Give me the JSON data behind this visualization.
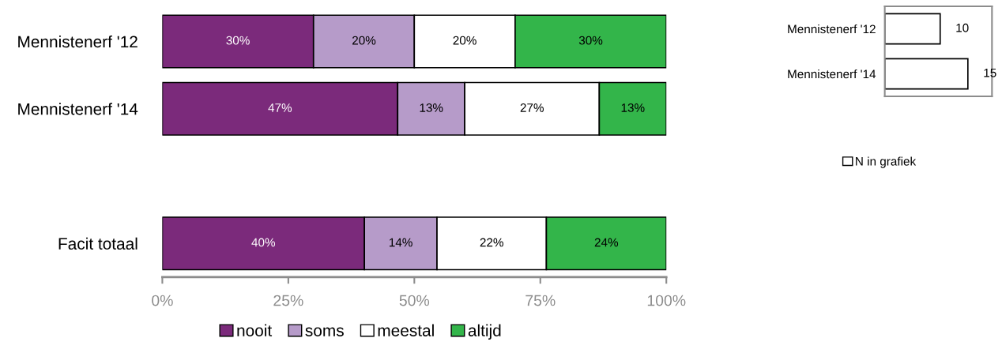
{
  "chart_data": [
    {
      "type": "bar",
      "orientation": "horizontal",
      "stacked": true,
      "categories": [
        "Mennistenerf '12",
        "Mennistenerf '14",
        null,
        "Facit totaal"
      ],
      "series": [
        {
          "name": "nooit",
          "color": "#7b2a7b",
          "values": [
            30,
            46.7,
            null,
            40.1
          ],
          "value_labels": [
            "30%",
            "47%",
            null,
            "40%"
          ]
        },
        {
          "name": "soms",
          "color": "#b69bc9",
          "values": [
            20,
            13.3,
            null,
            14.4
          ],
          "value_labels": [
            "20%",
            "13%",
            null,
            "14%"
          ]
        },
        {
          "name": "meestal",
          "color": "#ffffff",
          "values": [
            20,
            26.7,
            null,
            21.7
          ],
          "value_labels": [
            "20%",
            "27%",
            null,
            "22%"
          ]
        },
        {
          "name": "altijd",
          "color": "#33b54a",
          "values": [
            30,
            13.3,
            null,
            23.8
          ],
          "value_labels": [
            "30%",
            "13%",
            null,
            "24%"
          ]
        }
      ],
      "xlim": [
        0,
        100
      ],
      "xticks": [
        {
          "value": 0,
          "label": "0%"
        },
        {
          "value": 25,
          "label": "25%"
        },
        {
          "value": 50,
          "label": "50%"
        },
        {
          "value": 75,
          "label": "75%"
        },
        {
          "value": 100,
          "label": "100%"
        }
      ],
      "grid": false,
      "legend": "bottom"
    },
    {
      "type": "bar",
      "orientation": "horizontal",
      "categories": [
        "Mennistenerf '12",
        "Mennistenerf '14"
      ],
      "series": [
        {
          "name": "N in grafiek",
          "color": "#ffffff",
          "values": [
            10,
            15
          ]
        }
      ],
      "data_labels": true,
      "tick_labels": "y",
      "grid": false,
      "legend": "bottom"
    }
  ]
}
